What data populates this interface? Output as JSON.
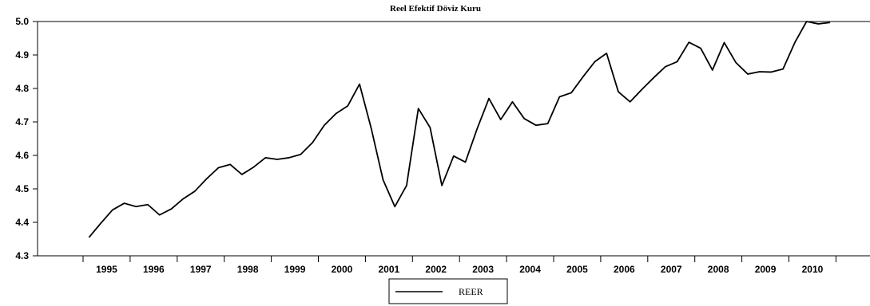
{
  "chart_data": {
    "type": "line",
    "title": "Reel Efektif Döviz Kuru",
    "xlabel": "",
    "ylabel": "",
    "ylim": [
      4.3,
      5.0
    ],
    "yticks": [
      "4.3",
      "4.4",
      "4.5",
      "4.6",
      "4.7",
      "4.8",
      "4.9",
      "5.0"
    ],
    "x_categories": [
      "1995",
      "1996",
      "1997",
      "1998",
      "1999",
      "2000",
      "2001",
      "2002",
      "2003",
      "2004",
      "2005",
      "2006",
      "2007",
      "2008",
      "2009",
      "2010"
    ],
    "quarters_per_year": 4,
    "grid": false,
    "legend_position": "bottom-center",
    "series": [
      {
        "name": "REER",
        "color": "#000000",
        "x": [
          "1995Q1",
          "1995Q2",
          "1995Q3",
          "1995Q4",
          "1996Q1",
          "1996Q2",
          "1996Q3",
          "1996Q4",
          "1997Q1",
          "1997Q2",
          "1997Q3",
          "1997Q4",
          "1998Q1",
          "1998Q2",
          "1998Q3",
          "1998Q4",
          "1999Q1",
          "1999Q2",
          "1999Q3",
          "1999Q4",
          "2000Q1",
          "2000Q2",
          "2000Q3",
          "2000Q4",
          "2001Q1",
          "2001Q2",
          "2001Q3",
          "2001Q4",
          "2002Q1",
          "2002Q2",
          "2002Q3",
          "2002Q4",
          "2003Q1",
          "2003Q2",
          "2003Q3",
          "2003Q4",
          "2004Q1",
          "2004Q2",
          "2004Q3",
          "2004Q4",
          "2005Q1",
          "2005Q2",
          "2005Q3",
          "2005Q4",
          "2006Q1",
          "2006Q2",
          "2006Q3",
          "2006Q4",
          "2007Q1",
          "2007Q2",
          "2007Q3",
          "2007Q4",
          "2008Q1",
          "2008Q2",
          "2008Q3",
          "2008Q4",
          "2009Q1",
          "2009Q2",
          "2009Q3",
          "2009Q4",
          "2010Q1",
          "2010Q2",
          "2010Q3",
          "2010Q4"
        ],
        "values": [
          4.355,
          4.397,
          4.437,
          4.457,
          4.447,
          4.453,
          4.422,
          4.44,
          4.47,
          4.493,
          4.53,
          4.563,
          4.573,
          4.543,
          4.565,
          4.593,
          4.588,
          4.593,
          4.603,
          4.638,
          4.69,
          4.725,
          4.748,
          4.813,
          4.68,
          4.527,
          4.447,
          4.51,
          4.74,
          4.683,
          4.51,
          4.598,
          4.58,
          4.68,
          4.77,
          4.707,
          4.76,
          4.71,
          4.69,
          4.695,
          4.775,
          4.787,
          4.835,
          4.88,
          4.905,
          4.79,
          4.76,
          4.797,
          4.832,
          4.865,
          4.88,
          4.938,
          4.92,
          4.855,
          4.937,
          4.877,
          4.843,
          4.85,
          4.849,
          4.858,
          4.937,
          5.0,
          4.993,
          4.997
        ]
      }
    ]
  },
  "legend": {
    "label": "REER"
  }
}
